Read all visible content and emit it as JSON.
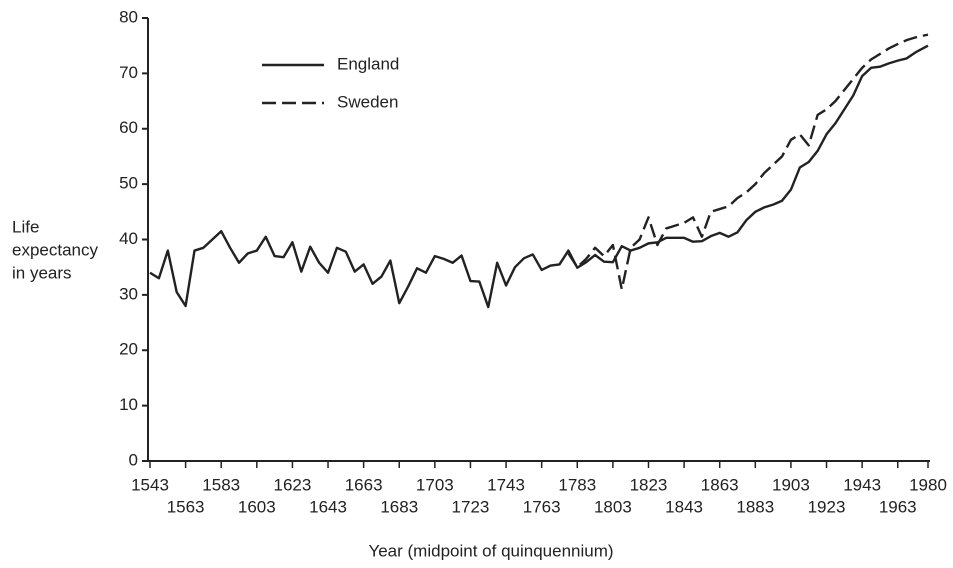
{
  "chart_data": {
    "type": "line",
    "xlabel": "Year (midpoint of quinquennium)",
    "ylabel": [
      "Life",
      "expectancy",
      "in years"
    ],
    "xlim": [
      1543,
      1980
    ],
    "xticks": [
      1543,
      1563,
      1583,
      1603,
      1623,
      1643,
      1663,
      1683,
      1703,
      1723,
      1743,
      1763,
      1783,
      1803,
      1823,
      1843,
      1863,
      1883,
      1903,
      1923,
      1943,
      1963,
      1980
    ],
    "ylim": [
      0,
      80
    ],
    "yticks": [
      0,
      10,
      20,
      30,
      40,
      50,
      60,
      70,
      80
    ],
    "legend": "upper left",
    "series": [
      {
        "name": "England",
        "color": "#222222",
        "dash": "solid",
        "x": [
          1543,
          1548,
          1553,
          1558,
          1563,
          1568,
          1573,
          1578,
          1583,
          1588,
          1593,
          1598,
          1603,
          1608,
          1613,
          1618,
          1623,
          1628,
          1633,
          1638,
          1643,
          1648,
          1653,
          1658,
          1663,
          1668,
          1673,
          1678,
          1683,
          1688,
          1693,
          1698,
          1703,
          1708,
          1713,
          1718,
          1723,
          1728,
          1733,
          1738,
          1743,
          1748,
          1753,
          1758,
          1763,
          1768,
          1773,
          1778,
          1783,
          1788,
          1793,
          1798,
          1803,
          1808,
          1813,
          1818,
          1823,
          1828,
          1833,
          1838,
          1843,
          1848,
          1853,
          1858,
          1863,
          1868,
          1873,
          1878,
          1883,
          1888,
          1893,
          1898,
          1903,
          1908,
          1913,
          1918,
          1923,
          1928,
          1933,
          1938,
          1943,
          1948,
          1953,
          1958,
          1963,
          1968,
          1973,
          1980
        ],
        "values": [
          34,
          33,
          38,
          30.5,
          28,
          38,
          38.5,
          40,
          41.5,
          38.5,
          35.8,
          37.5,
          38,
          40.5,
          37,
          36.8,
          39.5,
          34.2,
          38.7,
          35.8,
          34,
          38.5,
          37.8,
          34.2,
          35.5,
          32,
          33.3,
          36.2,
          28.5,
          31.5,
          34.8,
          34,
          37,
          36.5,
          35.8,
          37.1,
          32.5,
          32.4,
          27.8,
          35.8,
          31.7,
          35,
          36.6,
          37.3,
          34.5,
          35.3,
          35.5,
          38,
          34.9,
          35.9,
          37.2,
          36,
          35.9,
          38.8,
          38,
          38.5,
          39.3,
          39.5,
          40.3,
          40.3,
          40.3,
          39.6,
          39.7,
          40.6,
          41.2,
          40.5,
          41.3,
          43.5,
          45,
          45.8,
          46.3,
          47,
          49,
          53,
          54,
          56,
          59,
          61,
          63.5,
          66,
          69.5,
          71,
          71.2,
          71.8,
          72.3,
          72.7,
          73.8,
          75
        ]
      },
      {
        "name": "Sweden",
        "color": "#222222",
        "dash": "dashed",
        "x": [
          1778,
          1783,
          1788,
          1793,
          1798,
          1803,
          1808,
          1813,
          1818,
          1823,
          1828,
          1833,
          1838,
          1843,
          1848,
          1853,
          1858,
          1863,
          1868,
          1873,
          1878,
          1883,
          1888,
          1893,
          1898,
          1903,
          1908,
          1913,
          1918,
          1923,
          1928,
          1933,
          1938,
          1943,
          1948,
          1953,
          1958,
          1963,
          1968,
          1973,
          1980
        ],
        "values": [
          37.5,
          35,
          36.5,
          38.5,
          37,
          39,
          31,
          38.5,
          40,
          44,
          39,
          42,
          42.5,
          43,
          44,
          40.5,
          45,
          45.5,
          46,
          47.5,
          48.5,
          50,
          52,
          53.5,
          55,
          58,
          59,
          57,
          62.5,
          63.5,
          65,
          67,
          69,
          71,
          72.5,
          73.5,
          74.5,
          75.3,
          76,
          76.5,
          77
        ]
      }
    ]
  }
}
